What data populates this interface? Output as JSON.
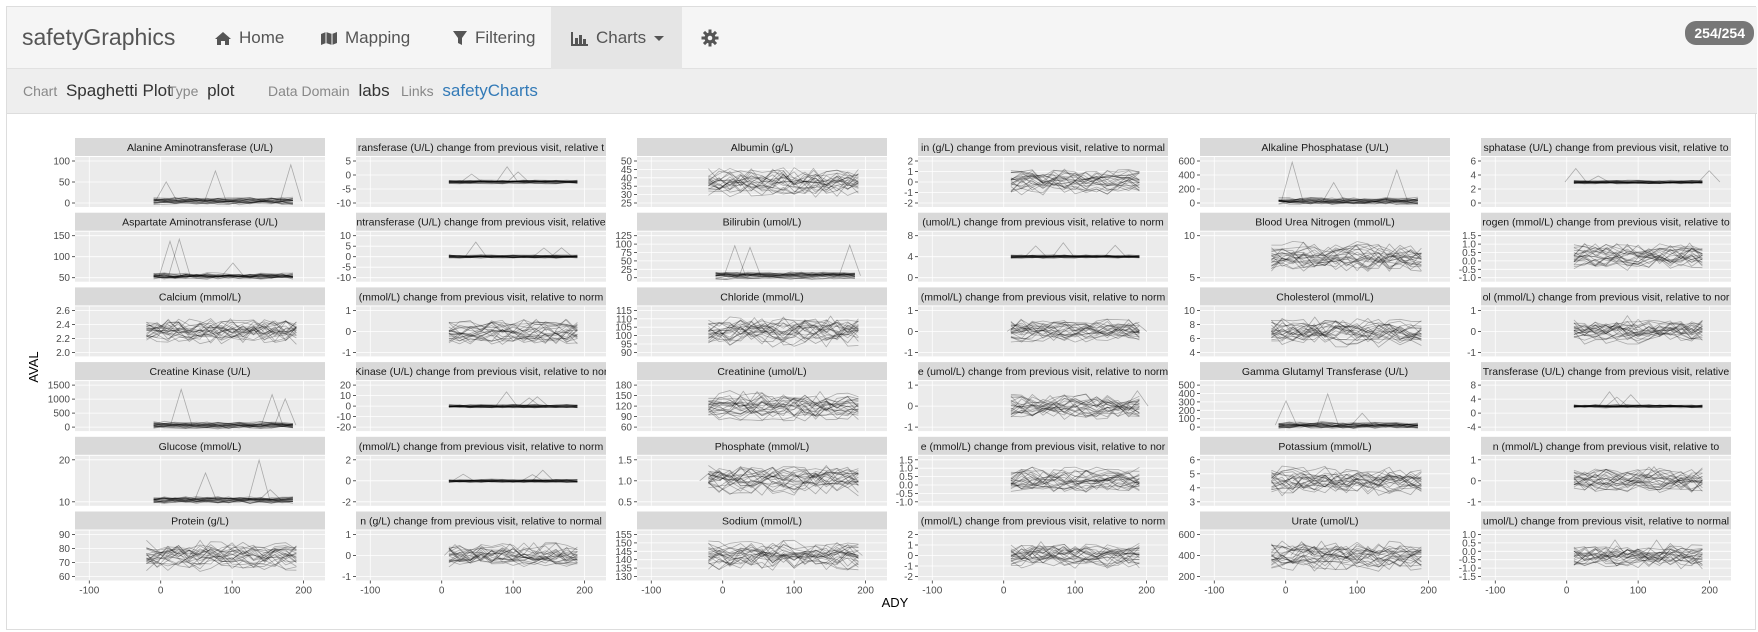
{
  "navbar": {
    "brand": "safetyGraphics",
    "items": [
      {
        "label": "Home",
        "icon": "home-icon"
      },
      {
        "label": "Mapping",
        "icon": "map-icon"
      },
      {
        "label": "Filtering",
        "icon": "filter-icon"
      },
      {
        "label": "Charts",
        "icon": "bar-chart-icon",
        "active": true,
        "dropdown": true
      }
    ],
    "settings_icon": "gear-icon",
    "badge": "254/254"
  },
  "info": {
    "chart_label": "Chart",
    "chart_value": "Spaghetti Plot",
    "type_label": "Type",
    "type_value": "plot",
    "domain_label": "Data Domain",
    "domain_value": "labs",
    "links_label": "Links",
    "links_value": "safetyCharts"
  },
  "chart_data": {
    "type": "line",
    "xlabel": "ADY",
    "ylabel": "AVAL",
    "x_ticks": [
      "-100",
      "0",
      "100",
      "200"
    ],
    "panels": [
      {
        "title": "Alanine Aminotransferase (U/L)",
        "ticks": [
          "0",
          "50",
          "100"
        ],
        "style": "A"
      },
      {
        "title": "ransferase (U/L) change from previous visit, relative t",
        "ticks": [
          "-10",
          "-5",
          "0",
          "5"
        ],
        "style": "B"
      },
      {
        "title": "Albumin (g/L)",
        "ticks": [
          "25",
          "30",
          "35",
          "40",
          "45",
          "50"
        ],
        "style": "C"
      },
      {
        "title": "in (g/L) change from previous visit, relative to normal",
        "ticks": [
          "-2",
          "-1",
          "0",
          "1",
          "2"
        ],
        "style": "D"
      },
      {
        "title": "Alkaline Phosphatase (U/L)",
        "ticks": [
          "0",
          "200",
          "400",
          "600"
        ],
        "style": "A"
      },
      {
        "title": "sphatase (U/L) change from previous visit, relative to",
        "ticks": [
          "0",
          "2",
          "4",
          "6"
        ],
        "style": "B"
      },
      {
        "title": "Aspartate Aminotransferase (U/L)",
        "ticks": [
          "50",
          "100",
          "150"
        ],
        "style": "A"
      },
      {
        "title": "ntransferase (U/L) change from previous visit, relative",
        "ticks": [
          "-10",
          "-5",
          "0",
          "5",
          "10"
        ],
        "style": "B"
      },
      {
        "title": "Bilirubin (umol/L)",
        "ticks": [
          "0",
          "25",
          "50",
          "75",
          "100",
          "125"
        ],
        "style": "A"
      },
      {
        "title": "(umol/L) change from previous visit, relative to norm",
        "ticks": [
          "0",
          "4",
          "8"
        ],
        "style": "B"
      },
      {
        "title": "Blood Urea Nitrogen (mmol/L)",
        "ticks": [
          "5",
          "10"
        ],
        "style": "C"
      },
      {
        "title": "rogen (mmol/L) change from previous visit, relative to",
        "ticks": [
          "-1.0",
          "-0.5",
          "0.0",
          "0.5",
          "1.0",
          "1.5"
        ],
        "style": "D"
      },
      {
        "title": "Calcium (mmol/L)",
        "ticks": [
          "2.0",
          "2.2",
          "2.4",
          "2.6"
        ],
        "style": "C"
      },
      {
        "title": "(mmol/L) change from previous visit, relative to norm",
        "ticks": [
          "-1",
          "0",
          "1"
        ],
        "style": "D"
      },
      {
        "title": "Chloride (mmol/L)",
        "ticks": [
          "90",
          "95",
          "100",
          "105",
          "110",
          "115"
        ],
        "style": "C"
      },
      {
        "title": "(mmol/L) change from previous visit, relative to norm",
        "ticks": [
          "-1",
          "0",
          "1"
        ],
        "style": "D"
      },
      {
        "title": "Cholesterol (mmol/L)",
        "ticks": [
          "4",
          "6",
          "8",
          "10"
        ],
        "style": "C"
      },
      {
        "title": "ol (mmol/L) change from previous visit, relative to nor",
        "ticks": [
          "-1",
          "0",
          "1"
        ],
        "style": "D"
      },
      {
        "title": "Creatine Kinase (U/L)",
        "ticks": [
          "0",
          "500",
          "1000",
          "1500"
        ],
        "style": "A"
      },
      {
        "title": "Kinase (U/L) change from previous visit, relative to nor",
        "ticks": [
          "-20",
          "-10",
          "0",
          "10",
          "20"
        ],
        "style": "B"
      },
      {
        "title": "Creatinine (umol/L)",
        "ticks": [
          "60",
          "90",
          "120",
          "150",
          "180"
        ],
        "style": "C"
      },
      {
        "title": "e (umol/L) change from previous visit, relative to norm",
        "ticks": [
          "-1",
          "0",
          "1"
        ],
        "style": "D"
      },
      {
        "title": "Gamma Glutamyl Transferase (U/L)",
        "ticks": [
          "0",
          "100",
          "200",
          "300",
          "400",
          "500"
        ],
        "style": "A"
      },
      {
        "title": "Transferase (U/L) change from previous visit, relative",
        "ticks": [
          "-4",
          "0",
          "4",
          "8"
        ],
        "style": "B"
      },
      {
        "title": "Glucose (mmol/L)",
        "ticks": [
          "10",
          "20"
        ],
        "style": "A"
      },
      {
        "title": "(mmol/L) change from previous visit, relative to norm",
        "ticks": [
          "-2",
          "0",
          "2"
        ],
        "style": "B"
      },
      {
        "title": "Phosphate (mmol/L)",
        "ticks": [
          "0.5",
          "1.0",
          "1.5"
        ],
        "style": "C"
      },
      {
        "title": "e (mmol/L) change from previous visit, relative to nor",
        "ticks": [
          "-1.0",
          "-0.5",
          "0.0",
          "0.5",
          "1.0",
          "1.5"
        ],
        "style": "D"
      },
      {
        "title": "Potassium (mmol/L)",
        "ticks": [
          "3",
          "4",
          "5",
          "6"
        ],
        "style": "C"
      },
      {
        "title": "n (mmol/L) change from previous visit, relative to",
        "ticks": [
          "-1",
          "0",
          "1"
        ],
        "style": "D"
      },
      {
        "title": "Protein (g/L)",
        "ticks": [
          "60",
          "70",
          "80",
          "90"
        ],
        "style": "C"
      },
      {
        "title": "n (g/L) change from previous visit, relative to normal",
        "ticks": [
          "-1",
          "0",
          "1"
        ],
        "style": "D"
      },
      {
        "title": "Sodium (mmol/L)",
        "ticks": [
          "130",
          "135",
          "140",
          "145",
          "150",
          "155"
        ],
        "style": "C"
      },
      {
        "title": "(mmol/L) change from previous visit, relative to norm",
        "ticks": [
          "-2",
          "-1",
          "0",
          "1",
          "2"
        ],
        "style": "D"
      },
      {
        "title": "Urate (umol/L)",
        "ticks": [
          "200",
          "400",
          "600"
        ],
        "style": "C"
      },
      {
        "title": "umol/L) change from previous visit, relative to normal",
        "ticks": [
          "-1.5",
          "-1.0",
          "-0.5",
          "0.0",
          "0.5",
          "1.0"
        ],
        "style": "D"
      }
    ]
  }
}
